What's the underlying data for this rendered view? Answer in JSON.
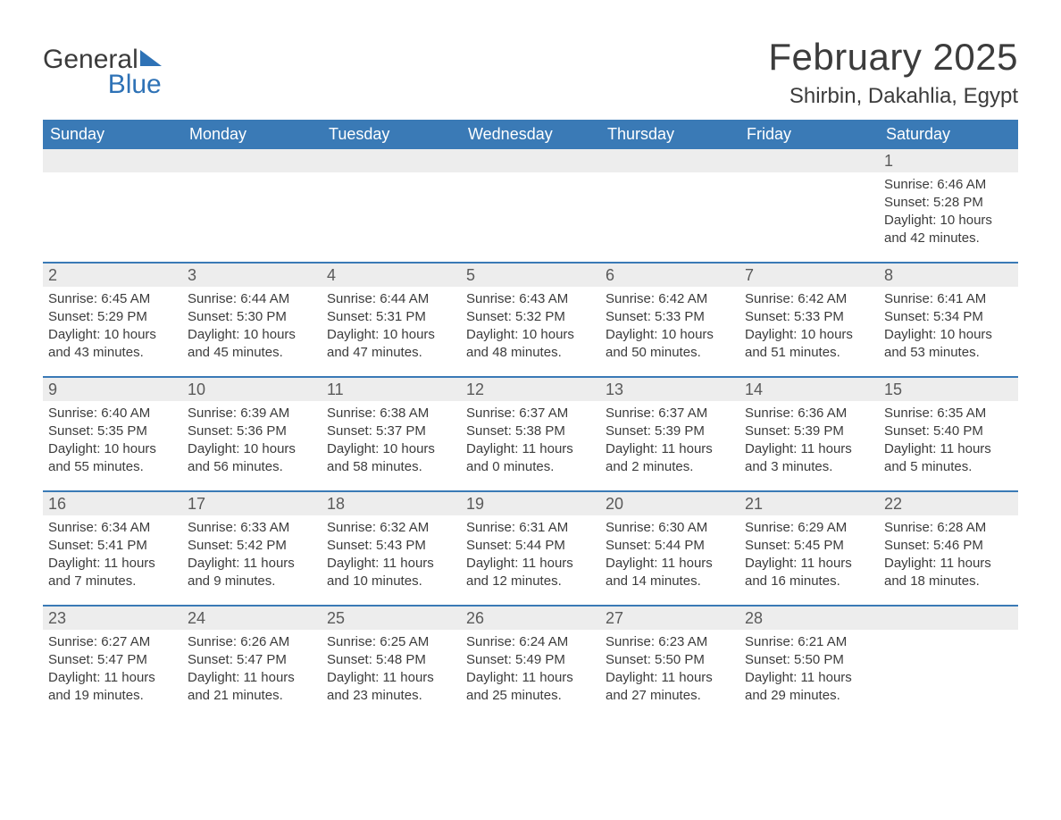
{
  "brand": {
    "part1": "General",
    "part2": "Blue"
  },
  "header": {
    "month_title": "February 2025",
    "location": "Shirbin, Dakahlia, Egypt"
  },
  "colors": {
    "header_bg": "#3a7ab6",
    "header_text": "#ffffff",
    "row_rule": "#3a7ab6",
    "daynum_bg": "#ededed",
    "body_text": "#3c3c3c",
    "brand_blue": "#2e72b6"
  },
  "weekdays": [
    "Sunday",
    "Monday",
    "Tuesday",
    "Wednesday",
    "Thursday",
    "Friday",
    "Saturday"
  ],
  "weeks": [
    [
      null,
      null,
      null,
      null,
      null,
      null,
      {
        "n": "1",
        "sunrise": "6:46 AM",
        "sunset": "5:28 PM",
        "daylight": "10 hours and 42 minutes."
      }
    ],
    [
      {
        "n": "2",
        "sunrise": "6:45 AM",
        "sunset": "5:29 PM",
        "daylight": "10 hours and 43 minutes."
      },
      {
        "n": "3",
        "sunrise": "6:44 AM",
        "sunset": "5:30 PM",
        "daylight": "10 hours and 45 minutes."
      },
      {
        "n": "4",
        "sunrise": "6:44 AM",
        "sunset": "5:31 PM",
        "daylight": "10 hours and 47 minutes."
      },
      {
        "n": "5",
        "sunrise": "6:43 AM",
        "sunset": "5:32 PM",
        "daylight": "10 hours and 48 minutes."
      },
      {
        "n": "6",
        "sunrise": "6:42 AM",
        "sunset": "5:33 PM",
        "daylight": "10 hours and 50 minutes."
      },
      {
        "n": "7",
        "sunrise": "6:42 AM",
        "sunset": "5:33 PM",
        "daylight": "10 hours and 51 minutes."
      },
      {
        "n": "8",
        "sunrise": "6:41 AM",
        "sunset": "5:34 PM",
        "daylight": "10 hours and 53 minutes."
      }
    ],
    [
      {
        "n": "9",
        "sunrise": "6:40 AM",
        "sunset": "5:35 PM",
        "daylight": "10 hours and 55 minutes."
      },
      {
        "n": "10",
        "sunrise": "6:39 AM",
        "sunset": "5:36 PM",
        "daylight": "10 hours and 56 minutes."
      },
      {
        "n": "11",
        "sunrise": "6:38 AM",
        "sunset": "5:37 PM",
        "daylight": "10 hours and 58 minutes."
      },
      {
        "n": "12",
        "sunrise": "6:37 AM",
        "sunset": "5:38 PM",
        "daylight": "11 hours and 0 minutes."
      },
      {
        "n": "13",
        "sunrise": "6:37 AM",
        "sunset": "5:39 PM",
        "daylight": "11 hours and 2 minutes."
      },
      {
        "n": "14",
        "sunrise": "6:36 AM",
        "sunset": "5:39 PM",
        "daylight": "11 hours and 3 minutes."
      },
      {
        "n": "15",
        "sunrise": "6:35 AM",
        "sunset": "5:40 PM",
        "daylight": "11 hours and 5 minutes."
      }
    ],
    [
      {
        "n": "16",
        "sunrise": "6:34 AM",
        "sunset": "5:41 PM",
        "daylight": "11 hours and 7 minutes."
      },
      {
        "n": "17",
        "sunrise": "6:33 AM",
        "sunset": "5:42 PM",
        "daylight": "11 hours and 9 minutes."
      },
      {
        "n": "18",
        "sunrise": "6:32 AM",
        "sunset": "5:43 PM",
        "daylight": "11 hours and 10 minutes."
      },
      {
        "n": "19",
        "sunrise": "6:31 AM",
        "sunset": "5:44 PM",
        "daylight": "11 hours and 12 minutes."
      },
      {
        "n": "20",
        "sunrise": "6:30 AM",
        "sunset": "5:44 PM",
        "daylight": "11 hours and 14 minutes."
      },
      {
        "n": "21",
        "sunrise": "6:29 AM",
        "sunset": "5:45 PM",
        "daylight": "11 hours and 16 minutes."
      },
      {
        "n": "22",
        "sunrise": "6:28 AM",
        "sunset": "5:46 PM",
        "daylight": "11 hours and 18 minutes."
      }
    ],
    [
      {
        "n": "23",
        "sunrise": "6:27 AM",
        "sunset": "5:47 PM",
        "daylight": "11 hours and 19 minutes."
      },
      {
        "n": "24",
        "sunrise": "6:26 AM",
        "sunset": "5:47 PM",
        "daylight": "11 hours and 21 minutes."
      },
      {
        "n": "25",
        "sunrise": "6:25 AM",
        "sunset": "5:48 PM",
        "daylight": "11 hours and 23 minutes."
      },
      {
        "n": "26",
        "sunrise": "6:24 AM",
        "sunset": "5:49 PM",
        "daylight": "11 hours and 25 minutes."
      },
      {
        "n": "27",
        "sunrise": "6:23 AM",
        "sunset": "5:50 PM",
        "daylight": "11 hours and 27 minutes."
      },
      {
        "n": "28",
        "sunrise": "6:21 AM",
        "sunset": "5:50 PM",
        "daylight": "11 hours and 29 minutes."
      },
      null
    ]
  ],
  "labels": {
    "sunrise": "Sunrise: ",
    "sunset": "Sunset: ",
    "daylight": "Daylight: "
  }
}
